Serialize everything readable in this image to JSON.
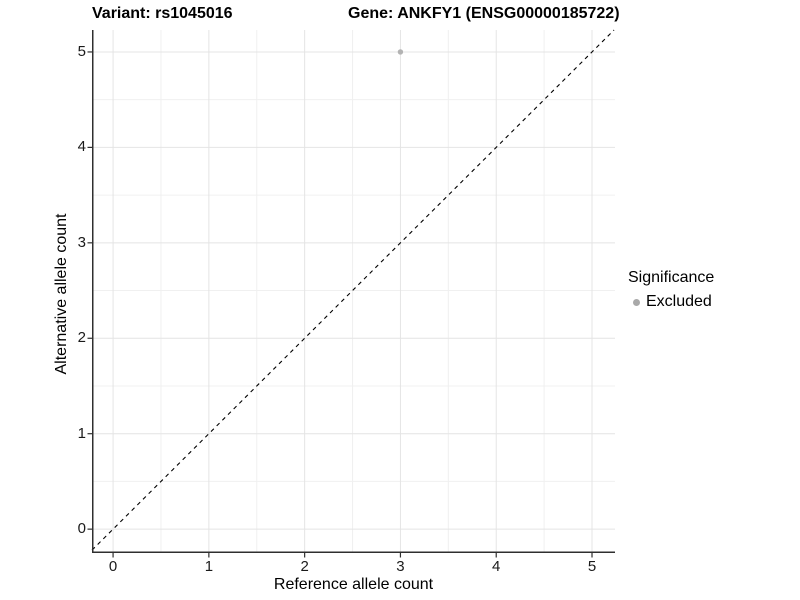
{
  "chart_data": {
    "type": "scatter",
    "title_left": "Variant: rs1045016",
    "title_right": "Gene: ANKFY1 (ENSG00000185722)",
    "xlabel": "Reference allele count",
    "ylabel": "Alternative allele count",
    "xlim": [
      -0.22,
      5.24
    ],
    "ylim": [
      -0.25,
      5.23
    ],
    "xticks": [
      0,
      1,
      2,
      3,
      4,
      5
    ],
    "yticks": [
      0,
      1,
      2,
      3,
      4,
      5
    ],
    "minor_grid_step": 0.5,
    "grid": "major and minor, light grey on white",
    "points": [
      {
        "x": 3,
        "y": 5,
        "significance": "Excluded"
      }
    ],
    "identity_line": {
      "slope": 1,
      "intercept": 0,
      "style": "dashed",
      "color": "#000000"
    },
    "legend": {
      "title": "Significance",
      "position": "right",
      "items": [
        {
          "label": "Excluded",
          "marker": "circle",
          "color": "#a9a9a9"
        }
      ]
    },
    "colors": {
      "background": "#ffffff",
      "grid_major": "#e4e4e4",
      "grid_minor": "#f0f0f0",
      "axis_line": "#2f2f2f",
      "tick_mark": "#2f2f2f",
      "point": "#b3b3b3",
      "text": "#000000"
    }
  }
}
